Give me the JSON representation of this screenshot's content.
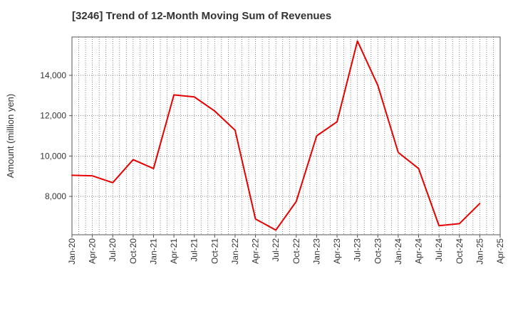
{
  "chart_data": {
    "type": "line",
    "title": "[3246]  Trend of 12-Month Moving Sum of Revenues",
    "xlabel": "",
    "ylabel": "Amount (million yen)",
    "ylim": [
      6100,
      15900
    ],
    "yticks": [
      8000,
      10000,
      12000,
      14000
    ],
    "ytick_labels": [
      "8,000",
      "10,000",
      "12,000",
      "14,000"
    ],
    "x_tick_labels": [
      "Jan-20",
      "Apr-20",
      "Jul-20",
      "Oct-20",
      "Jan-21",
      "Apr-21",
      "Jul-21",
      "Oct-21",
      "Jan-22",
      "Apr-22",
      "Jul-22",
      "Oct-22",
      "Jan-23",
      "Apr-23",
      "Jul-23",
      "Oct-23",
      "Jan-24",
      "Apr-24",
      "Jul-24",
      "Oct-24",
      "Jan-25",
      "Apr-25"
    ],
    "grid": true,
    "grid_style": "dotted",
    "series": [
      {
        "color": "#e60000",
        "x": [
          "Jan-20",
          "Apr-20",
          "Jul-20",
          "Oct-20",
          "Jan-21",
          "Apr-21",
          "Jul-21",
          "Oct-21",
          "Jan-22",
          "Apr-22",
          "Jul-22",
          "Oct-22",
          "Jan-23",
          "Apr-23",
          "Jul-23",
          "Oct-23",
          "Jan-24",
          "Apr-24",
          "Jul-24",
          "Oct-24",
          "Jan-25"
        ],
        "values": [
          9050,
          9020,
          8680,
          9820,
          9380,
          13030,
          12930,
          12230,
          11280,
          6880,
          6330,
          7750,
          11000,
          11700,
          15700,
          13500,
          10180,
          9380,
          6550,
          6650,
          7650
        ]
      }
    ]
  }
}
